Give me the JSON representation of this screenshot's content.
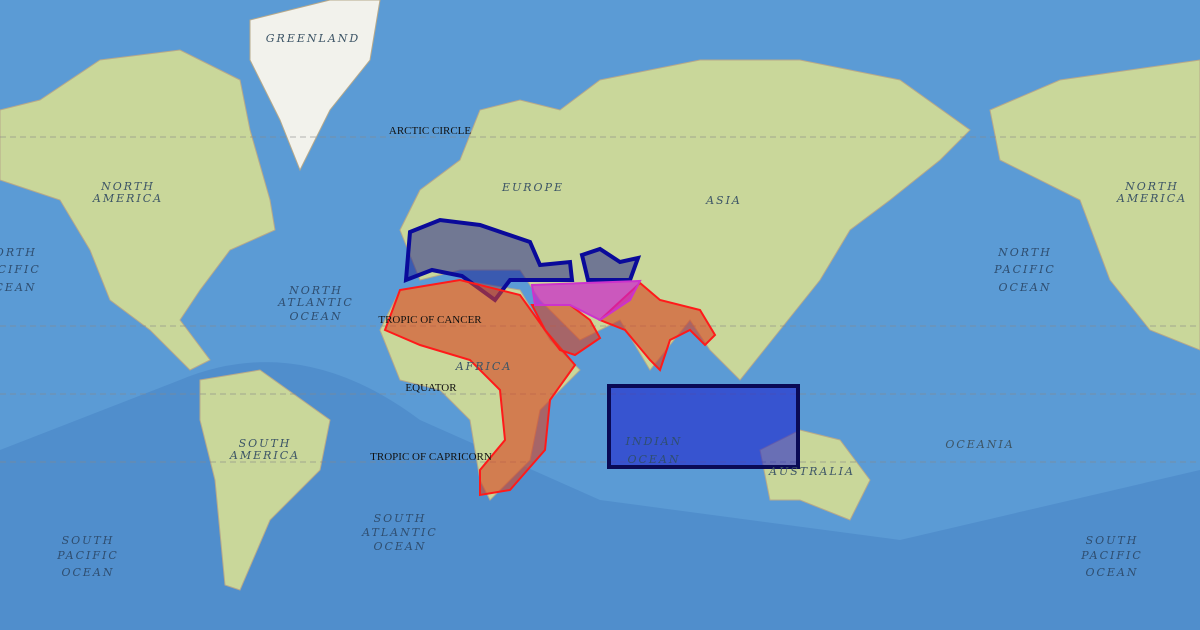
{
  "map": {
    "basemap": "physical-world",
    "colors": {
      "ocean": "#5b9bd5",
      "deep_ocean": "#3f78b8",
      "land": "#c9d79a",
      "highlight_blue": "#1a1a8c",
      "highlight_red": "#d9411f",
      "highlight_magenta": "#cc22cc",
      "rect_border": "#0a0a55"
    },
    "labels": {
      "greenland": "GREENLAND",
      "arctic_circle": "ARCTIC CIRCLE",
      "north_america": [
        "NORTH",
        "AMERICA"
      ],
      "europe": "EUROPE",
      "asia": "ASIA",
      "north_atlantic": [
        "NORTH",
        "ATLANTIC",
        "OCEAN"
      ],
      "north_pacific": [
        "NORTH",
        "PACIFIC",
        "OCEAN"
      ],
      "tropic_cancer": "TROPIC OF CANCER",
      "africa": "AFRICA",
      "equator": "EQUATOR",
      "tropic_capricorn": "TROPIC OF CAPRICORN",
      "south_america": [
        "SOUTH",
        "AMERICA"
      ],
      "south_atlantic": [
        "SOUTH",
        "ATLANTIC",
        "OCEAN"
      ],
      "indian_ocean": [
        "INDIAN",
        "OCEAN"
      ],
      "australia": "AUSTRALIA",
      "oceania": "OCEANIA",
      "south_pacific": [
        "SOUTH",
        "PACIFIC",
        "OCEAN"
      ]
    }
  }
}
